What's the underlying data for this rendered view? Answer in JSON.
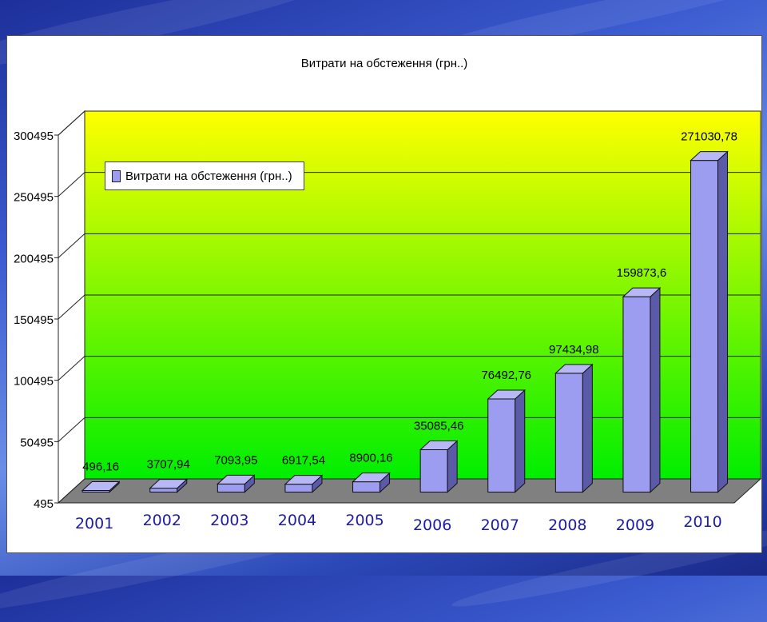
{
  "chart_data": {
    "type": "bar",
    "title": "Витрати на обстеження (грн..)",
    "legend": [
      {
        "name": "Витрати на обстеження (грн..)",
        "color": "#9c9cf0"
      }
    ],
    "legend_position": "top-left",
    "categories": [
      "2001",
      "2002",
      "2003",
      "2004",
      "2005",
      "2006",
      "2007",
      "2008",
      "2009",
      "2010"
    ],
    "series": [
      {
        "name": "Витрати на обстеження (грн..)",
        "values": [
          496.16,
          3707.94,
          7093.95,
          6917.54,
          8900.16,
          35085.46,
          76492.76,
          97434.98,
          159873.6,
          271030.78
        ],
        "labels": [
          "496,16",
          "3707,94",
          "7093,95",
          "6917,54",
          "8900,16",
          "35085,46",
          "76492,76",
          "97434,98",
          "159873,6",
          "271030,78"
        ]
      }
    ],
    "y_ticks": [
      495,
      50495,
      100495,
      150495,
      200495,
      250495,
      300495
    ],
    "ylim": [
      495,
      300495
    ],
    "grid": true,
    "colors": {
      "bar_face": "#9c9cf0",
      "bar_side": "#5a5aa8",
      "bar_top": "#b8b8f6",
      "wall_top": "#ffff00",
      "wall_bottom": "#00ee00",
      "floor": "#808080",
      "category_label": "#1c1ca8"
    }
  }
}
